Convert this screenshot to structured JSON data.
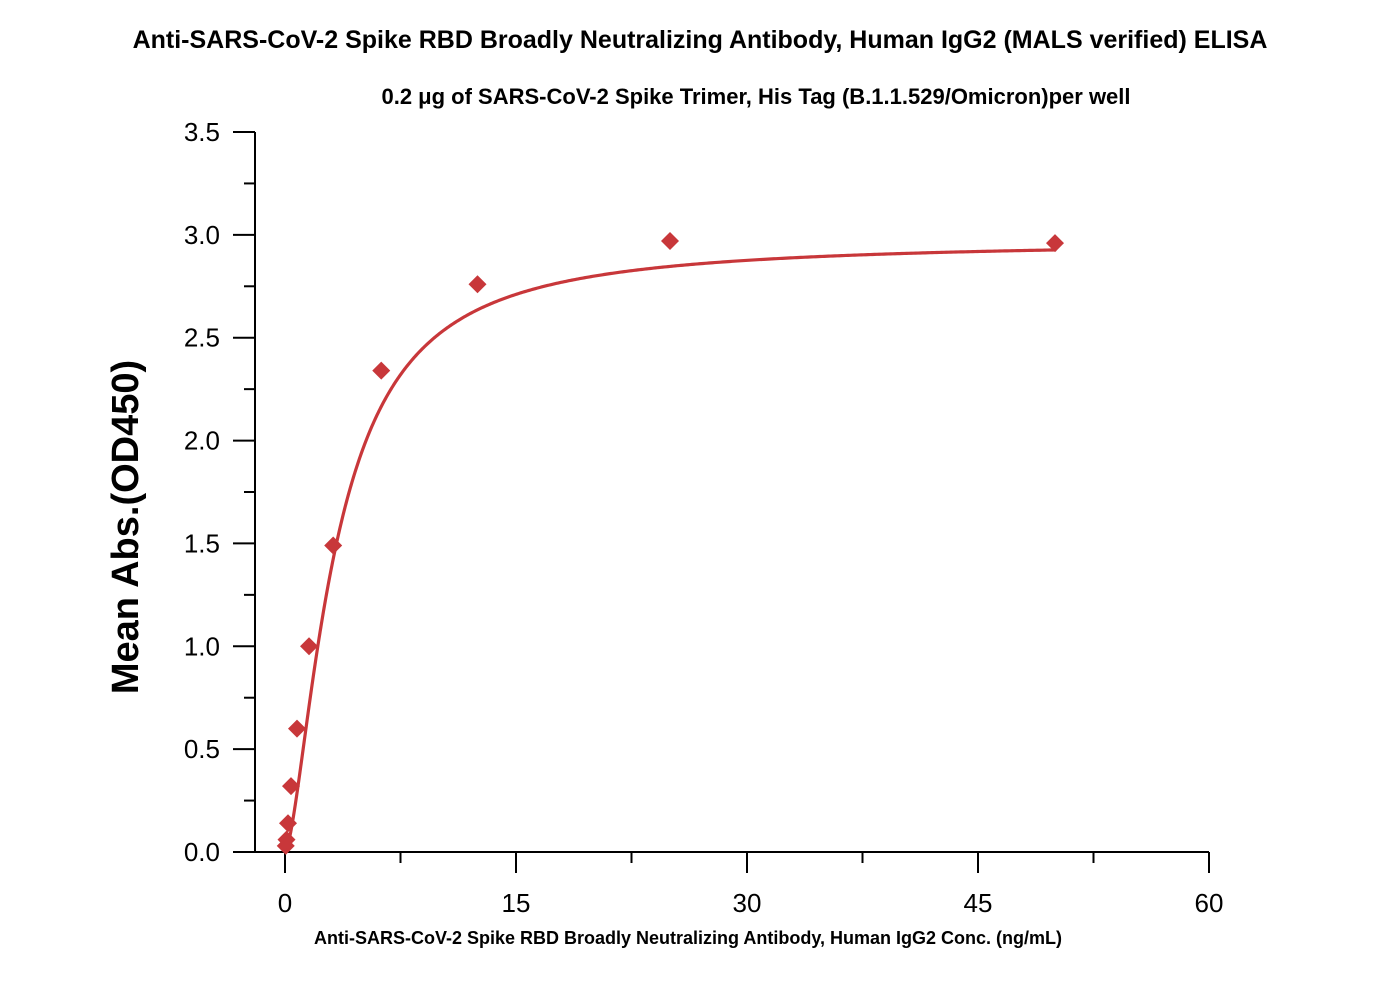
{
  "chart_data": {
    "type": "scatter",
    "title": "Anti-SARS-CoV-2 Spike RBD Broadly Neutralizing Antibody, Human IgG2 (MALS verified) ELISA",
    "subtitle": "0.2 μg of SARS-CoV-2 Spike Trimer, His Tag (B.1.1.529/Omicron)per well",
    "xlabel": "Anti-SARS-CoV-2 Spike RBD Broadly Neutralizing Antibody, Human IgG2 Conc. (ng/mL)",
    "ylabel": "Mean Abs.(OD450)",
    "xlim": [
      0,
      60
    ],
    "ylim": [
      0,
      3.5
    ],
    "x_ticks": [
      "0",
      "15",
      "30",
      "45",
      "60"
    ],
    "y_ticks": [
      "0.0",
      "0.5",
      "1.0",
      "1.5",
      "2.0",
      "2.5",
      "3.0",
      "3.5"
    ],
    "grid": false,
    "marker": "diamond",
    "fit": "4-parameter logistic curve",
    "color": "#c8373a",
    "series": [
      {
        "x": [
          0.049,
          0.098,
          0.195,
          0.39,
          0.78,
          1.56,
          3.13,
          6.25,
          12.5,
          25,
          50
        ],
        "y": [
          0.03,
          0.06,
          0.14,
          0.32,
          0.6,
          1.0,
          1.49,
          2.34,
          2.76,
          2.97,
          2.96
        ]
      }
    ]
  }
}
